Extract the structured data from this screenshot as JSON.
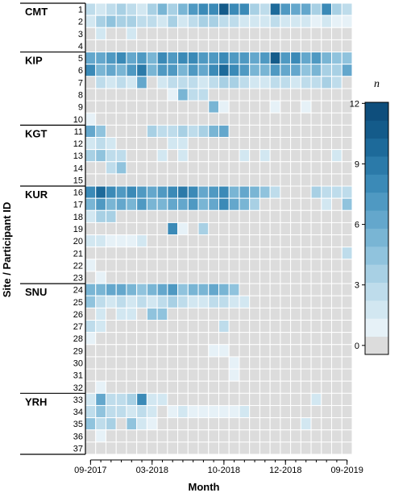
{
  "chart_data": {
    "type": "heatmap",
    "xlabel": "Month",
    "ylabel": "Site / Participant ID",
    "x_tick_labels": [
      "09-2017",
      "03-2018",
      "10-2018",
      "12-2018",
      "09-2019"
    ],
    "x_tick_columns": [
      1,
      7,
      14,
      20,
      26
    ],
    "n_columns": 26,
    "legend": {
      "title": "n",
      "ticks": [
        0,
        3,
        6,
        9,
        12
      ],
      "range": [
        0,
        12.5
      ],
      "colors": [
        "#dcdcdc",
        "#e6f1f7",
        "#d2e7f1",
        "#bedceb",
        "#a8d0e4",
        "#90c3dd",
        "#79b5d4",
        "#64a7cc",
        "#4f99c2",
        "#3b8ab7",
        "#2b7aa9",
        "#1d6a9a",
        "#145b8a",
        "#0e4e7c"
      ]
    },
    "sites": [
      {
        "name": "CMT",
        "ids": [
          "1",
          "2",
          "3",
          "4"
        ]
      },
      {
        "name": "KIP",
        "ids": [
          "5",
          "6",
          "7",
          "8",
          "9",
          "10"
        ]
      },
      {
        "name": "KGT",
        "ids": [
          "11",
          "12",
          "13",
          "14",
          "15"
        ]
      },
      {
        "name": "KUR",
        "ids": [
          "16",
          "17",
          "18",
          "19",
          "20",
          "21",
          "22",
          "23"
        ]
      },
      {
        "name": "SNU",
        "ids": [
          "24",
          "25",
          "26",
          "27",
          "28",
          "29",
          "30",
          "31",
          "32"
        ]
      },
      {
        "name": "YRH",
        "ids": [
          "33",
          "34",
          "35",
          "36",
          "37"
        ]
      }
    ],
    "rows": [
      {
        "id": "1",
        "values": [
          3,
          2,
          3,
          4,
          3,
          2,
          4,
          6,
          4,
          6,
          8,
          9,
          9,
          12,
          9,
          9,
          4,
          3,
          11,
          8,
          7,
          7,
          4,
          9,
          4,
          3
        ]
      },
      {
        "id": "2",
        "values": [
          2,
          4,
          5,
          4,
          4,
          3,
          3,
          2,
          4,
          2,
          3,
          4,
          4,
          3,
          3,
          2,
          2,
          2,
          3,
          2,
          2,
          2,
          1,
          2,
          1,
          1
        ]
      },
      {
        "id": "3",
        "values": [
          0,
          2,
          0,
          0,
          2,
          0,
          0,
          0,
          0,
          0,
          0,
          0,
          0,
          0,
          0,
          0,
          0,
          0,
          0,
          0,
          0,
          0,
          0,
          0,
          0,
          0
        ]
      },
      {
        "id": "4",
        "values": [
          0,
          0,
          0,
          0,
          0,
          0,
          0,
          0,
          0,
          0,
          0,
          0,
          0,
          0,
          0,
          0,
          0,
          0,
          0,
          0,
          0,
          0,
          0,
          0,
          0,
          0
        ]
      },
      {
        "id": "5",
        "values": [
          7,
          7,
          8,
          9,
          7,
          8,
          6,
          9,
          8,
          9,
          9,
          8,
          8,
          9,
          8,
          8,
          7,
          8,
          12,
          8,
          9,
          7,
          8,
          6,
          5,
          5
        ]
      },
      {
        "id": "6",
        "values": [
          9,
          6,
          7,
          6,
          8,
          10,
          6,
          8,
          8,
          6,
          8,
          7,
          9,
          11,
          9,
          8,
          6,
          6,
          8,
          7,
          7,
          5,
          6,
          4,
          4,
          7
        ]
      },
      {
        "id": "7",
        "values": [
          0,
          3,
          2,
          3,
          2,
          7,
          0,
          2,
          3,
          3,
          3,
          2,
          3,
          4,
          4,
          3,
          2,
          2,
          3,
          3,
          2,
          3,
          3,
          4,
          3,
          0
        ]
      },
      {
        "id": "8",
        "values": [
          0,
          0,
          0,
          0,
          0,
          0,
          0,
          0,
          1,
          6,
          3,
          3,
          0,
          0,
          0,
          0,
          0,
          0,
          0,
          0,
          0,
          0,
          0,
          0,
          0,
          0
        ]
      },
      {
        "id": "9",
        "values": [
          0,
          0,
          0,
          0,
          0,
          0,
          0,
          0,
          0,
          0,
          0,
          0,
          6,
          1,
          0,
          0,
          0,
          0,
          1,
          0,
          0,
          1,
          0,
          0,
          0,
          0
        ]
      },
      {
        "id": "10",
        "values": [
          1,
          0,
          0,
          0,
          0,
          0,
          0,
          0,
          0,
          0,
          0,
          0,
          0,
          0,
          0,
          0,
          0,
          0,
          0,
          0,
          0,
          0,
          0,
          0,
          0,
          0
        ]
      },
      {
        "id": "11",
        "values": [
          7,
          5,
          0,
          0,
          0,
          0,
          4,
          3,
          3,
          4,
          3,
          4,
          6,
          7,
          0,
          0,
          0,
          0,
          0,
          0,
          0,
          0,
          0,
          0,
          0,
          0
        ]
      },
      {
        "id": "12",
        "values": [
          2,
          3,
          2,
          0,
          0,
          0,
          0,
          0,
          2,
          2,
          0,
          0,
          0,
          0,
          0,
          0,
          0,
          0,
          0,
          0,
          0,
          0,
          0,
          0,
          0,
          0
        ]
      },
      {
        "id": "13",
        "values": [
          4,
          5,
          3,
          3,
          0,
          0,
          0,
          2,
          0,
          2,
          0,
          0,
          0,
          0,
          0,
          2,
          0,
          2,
          0,
          0,
          0,
          0,
          0,
          0,
          2,
          0
        ]
      },
      {
        "id": "14",
        "values": [
          0,
          0,
          3,
          5,
          0,
          0,
          0,
          0,
          0,
          0,
          0,
          0,
          0,
          0,
          0,
          0,
          0,
          0,
          0,
          0,
          0,
          0,
          0,
          0,
          0,
          0
        ]
      },
      {
        "id": "15",
        "values": [
          0,
          0,
          0,
          0,
          0,
          0,
          0,
          0,
          0,
          0,
          0,
          0,
          0,
          0,
          0,
          0,
          0,
          0,
          0,
          0,
          0,
          0,
          0,
          0,
          0,
          0
        ]
      },
      {
        "id": "16",
        "values": [
          9,
          11,
          9,
          8,
          9,
          8,
          7,
          8,
          9,
          10,
          9,
          7,
          8,
          9,
          6,
          7,
          6,
          5,
          3,
          0,
          0,
          0,
          4,
          3,
          3,
          3
        ]
      },
      {
        "id": "17",
        "values": [
          6,
          8,
          6,
          7,
          6,
          8,
          6,
          6,
          7,
          7,
          8,
          6,
          7,
          9,
          7,
          6,
          4,
          0,
          0,
          0,
          0,
          0,
          0,
          2,
          0,
          5
        ]
      },
      {
        "id": "18",
        "values": [
          2,
          4,
          4,
          0,
          0,
          0,
          0,
          0,
          0,
          0,
          0,
          0,
          0,
          0,
          0,
          0,
          0,
          0,
          0,
          0,
          0,
          0,
          0,
          0,
          0,
          0
        ]
      },
      {
        "id": "19",
        "values": [
          0,
          0,
          0,
          0,
          0,
          0,
          0,
          0,
          9,
          1,
          0,
          4,
          0,
          0,
          0,
          0,
          0,
          0,
          0,
          0,
          0,
          0,
          0,
          0,
          0,
          0
        ]
      },
      {
        "id": "20",
        "values": [
          2,
          2,
          1,
          1,
          1,
          2,
          0,
          0,
          0,
          0,
          0,
          0,
          0,
          0,
          0,
          0,
          0,
          0,
          0,
          0,
          0,
          0,
          0,
          0,
          0,
          0
        ]
      },
      {
        "id": "21",
        "values": [
          0,
          0,
          0,
          0,
          0,
          0,
          0,
          0,
          0,
          0,
          0,
          0,
          0,
          0,
          0,
          0,
          0,
          0,
          0,
          0,
          0,
          0,
          0,
          0,
          0,
          3
        ]
      },
      {
        "id": "22",
        "values": [
          1,
          0,
          0,
          0,
          0,
          0,
          0,
          0,
          0,
          0,
          0,
          0,
          0,
          0,
          0,
          0,
          0,
          0,
          0,
          0,
          0,
          0,
          0,
          0,
          0,
          0
        ]
      },
      {
        "id": "23",
        "values": [
          0,
          1,
          0,
          0,
          0,
          0,
          0,
          0,
          0,
          0,
          0,
          0,
          0,
          0,
          0,
          0,
          0,
          0,
          0,
          0,
          0,
          0,
          0,
          0,
          0,
          0
        ]
      },
      {
        "id": "24",
        "values": [
          6,
          6,
          7,
          7,
          6,
          5,
          6,
          7,
          8,
          5,
          6,
          6,
          7,
          6,
          5,
          0,
          0,
          0,
          0,
          0,
          0,
          0,
          0,
          0,
          0,
          0
        ]
      },
      {
        "id": "25",
        "values": [
          5,
          3,
          2,
          3,
          2,
          3,
          2,
          3,
          4,
          3,
          2,
          2,
          3,
          3,
          2,
          2,
          0,
          0,
          0,
          0,
          0,
          0,
          0,
          0,
          0,
          0
        ]
      },
      {
        "id": "26",
        "values": [
          0,
          2,
          0,
          2,
          2,
          0,
          5,
          5,
          0,
          0,
          0,
          0,
          0,
          0,
          0,
          0,
          0,
          0,
          0,
          0,
          0,
          0,
          0,
          0,
          0,
          0
        ]
      },
      {
        "id": "27",
        "values": [
          3,
          2,
          0,
          0,
          0,
          0,
          0,
          0,
          0,
          0,
          0,
          0,
          0,
          3,
          0,
          0,
          0,
          0,
          0,
          0,
          0,
          0,
          0,
          0,
          0,
          0
        ]
      },
      {
        "id": "28",
        "values": [
          1,
          0,
          0,
          0,
          0,
          0,
          0,
          0,
          0,
          0,
          0,
          0,
          0,
          0,
          0,
          0,
          0,
          0,
          0,
          0,
          0,
          0,
          0,
          0,
          0,
          0
        ]
      },
      {
        "id": "29",
        "values": [
          0,
          0,
          0,
          0,
          0,
          0,
          0,
          0,
          0,
          0,
          0,
          0,
          1,
          1,
          0,
          0,
          0,
          0,
          0,
          0,
          0,
          0,
          0,
          0,
          0,
          0
        ]
      },
      {
        "id": "30",
        "values": [
          0,
          0,
          0,
          0,
          0,
          0,
          0,
          0,
          0,
          0,
          0,
          0,
          0,
          0,
          1,
          0,
          0,
          0,
          0,
          0,
          0,
          0,
          0,
          0,
          0,
          0
        ]
      },
      {
        "id": "31",
        "values": [
          0,
          0,
          0,
          0,
          0,
          0,
          0,
          0,
          0,
          0,
          0,
          0,
          0,
          0,
          1,
          0,
          0,
          0,
          0,
          0,
          0,
          0,
          0,
          0,
          0,
          0
        ]
      },
      {
        "id": "32",
        "values": [
          0,
          1,
          0,
          0,
          0,
          0,
          0,
          0,
          0,
          0,
          0,
          0,
          0,
          0,
          0,
          0,
          0,
          0,
          0,
          0,
          0,
          0,
          0,
          0,
          0,
          0
        ]
      },
      {
        "id": "33",
        "values": [
          2,
          7,
          3,
          3,
          4,
          9,
          2,
          2,
          0,
          0,
          0,
          0,
          0,
          0,
          0,
          0,
          0,
          0,
          0,
          0,
          0,
          0,
          2,
          0,
          0,
          0
        ]
      },
      {
        "id": "34",
        "values": [
          3,
          5,
          3,
          3,
          2,
          3,
          2,
          0,
          1,
          2,
          1,
          1,
          1,
          1,
          1,
          2,
          0,
          0,
          0,
          0,
          0,
          0,
          0,
          0,
          0,
          0
        ]
      },
      {
        "id": "35",
        "values": [
          5,
          3,
          4,
          0,
          5,
          2,
          1,
          0,
          0,
          0,
          0,
          0,
          0,
          0,
          0,
          0,
          0,
          0,
          0,
          0,
          0,
          2,
          0,
          0,
          0,
          0
        ]
      },
      {
        "id": "36",
        "values": [
          0,
          1,
          0,
          0,
          0,
          0,
          0,
          0,
          0,
          0,
          0,
          0,
          0,
          0,
          0,
          0,
          0,
          0,
          0,
          0,
          0,
          0,
          0,
          0,
          0,
          0
        ]
      },
      {
        "id": "37",
        "values": [
          0,
          0,
          0,
          0,
          0,
          0,
          0,
          0,
          0,
          0,
          0,
          0,
          0,
          0,
          0,
          0,
          0,
          0,
          0,
          0,
          0,
          0,
          0,
          0,
          0,
          0
        ]
      }
    ]
  }
}
